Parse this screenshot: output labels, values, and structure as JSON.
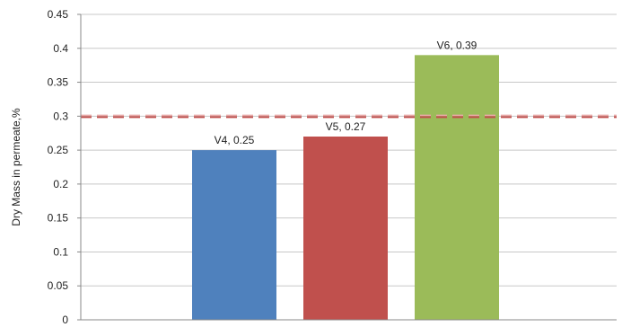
{
  "chart_data": {
    "type": "bar",
    "title": "",
    "xlabel": "",
    "ylabel": "Dry Mass in permeate,%",
    "ylim": [
      0,
      0.45
    ],
    "yticks": [
      "0",
      "0.05",
      "0.1",
      "0.15",
      "0.2",
      "0.25",
      "0.3",
      "0.35",
      "0.4",
      "0.45"
    ],
    "ytick_values": [
      0,
      0.05,
      0.1,
      0.15,
      0.2,
      0.25,
      0.3,
      0.35,
      0.4,
      0.45
    ],
    "grid": true,
    "categories": [
      "V4",
      "V5",
      "V6"
    ],
    "values": [
      0.25,
      0.27,
      0.39
    ],
    "data_labels": [
      "V4, 0.25",
      "V5, 0.27",
      "V6, 0.39"
    ],
    "bar_colors": [
      "#4f81bd",
      "#c0504d",
      "#9bbb59"
    ],
    "reference_line": {
      "value": 0.3,
      "style": "dashed",
      "color": "#c0504d"
    }
  }
}
